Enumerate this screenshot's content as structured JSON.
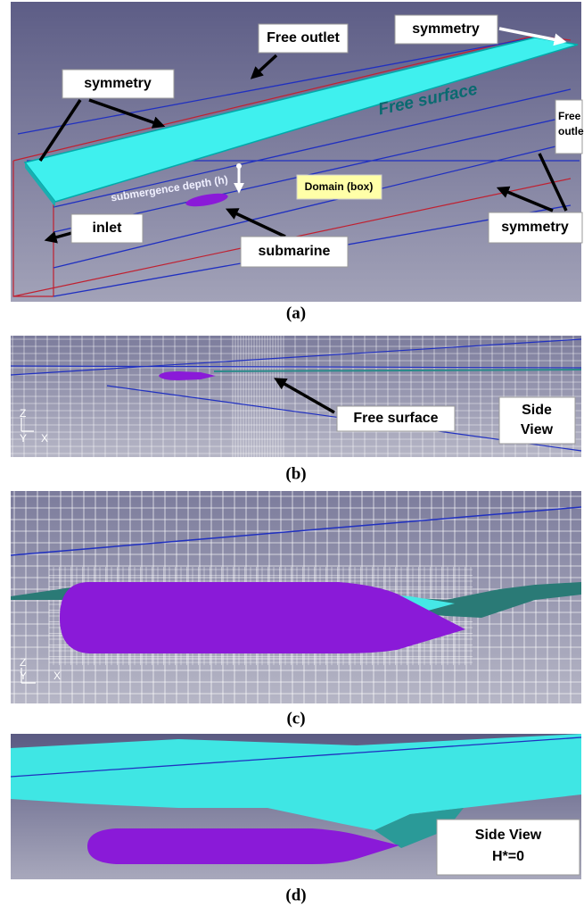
{
  "panels": [
    {
      "caption": "(a)",
      "labels": {
        "free_outlet": "Free outlet",
        "symmetry_top": "symmetry",
        "symmetry_left": "symmetry",
        "free_surface": "Free surface",
        "free_outlet_right": [
          "Free",
          "outle"
        ],
        "submergence_depth": "submergence depth (h)",
        "domain": "Domain (box)",
        "inlet": "inlet",
        "submarine": "submarine",
        "symmetry_right": "symmetry"
      }
    },
    {
      "caption": "(b)",
      "labels": {
        "free_surface": "Free surface",
        "view": [
          "Side",
          "View"
        ]
      },
      "axes": [
        "Z",
        "Y",
        "X"
      ]
    },
    {
      "caption": "(c)",
      "axes": [
        "Z",
        "Y",
        "X"
      ]
    },
    {
      "caption": "(d)",
      "labels": {
        "view": [
          "Side View",
          "H*=0"
        ]
      }
    }
  ]
}
